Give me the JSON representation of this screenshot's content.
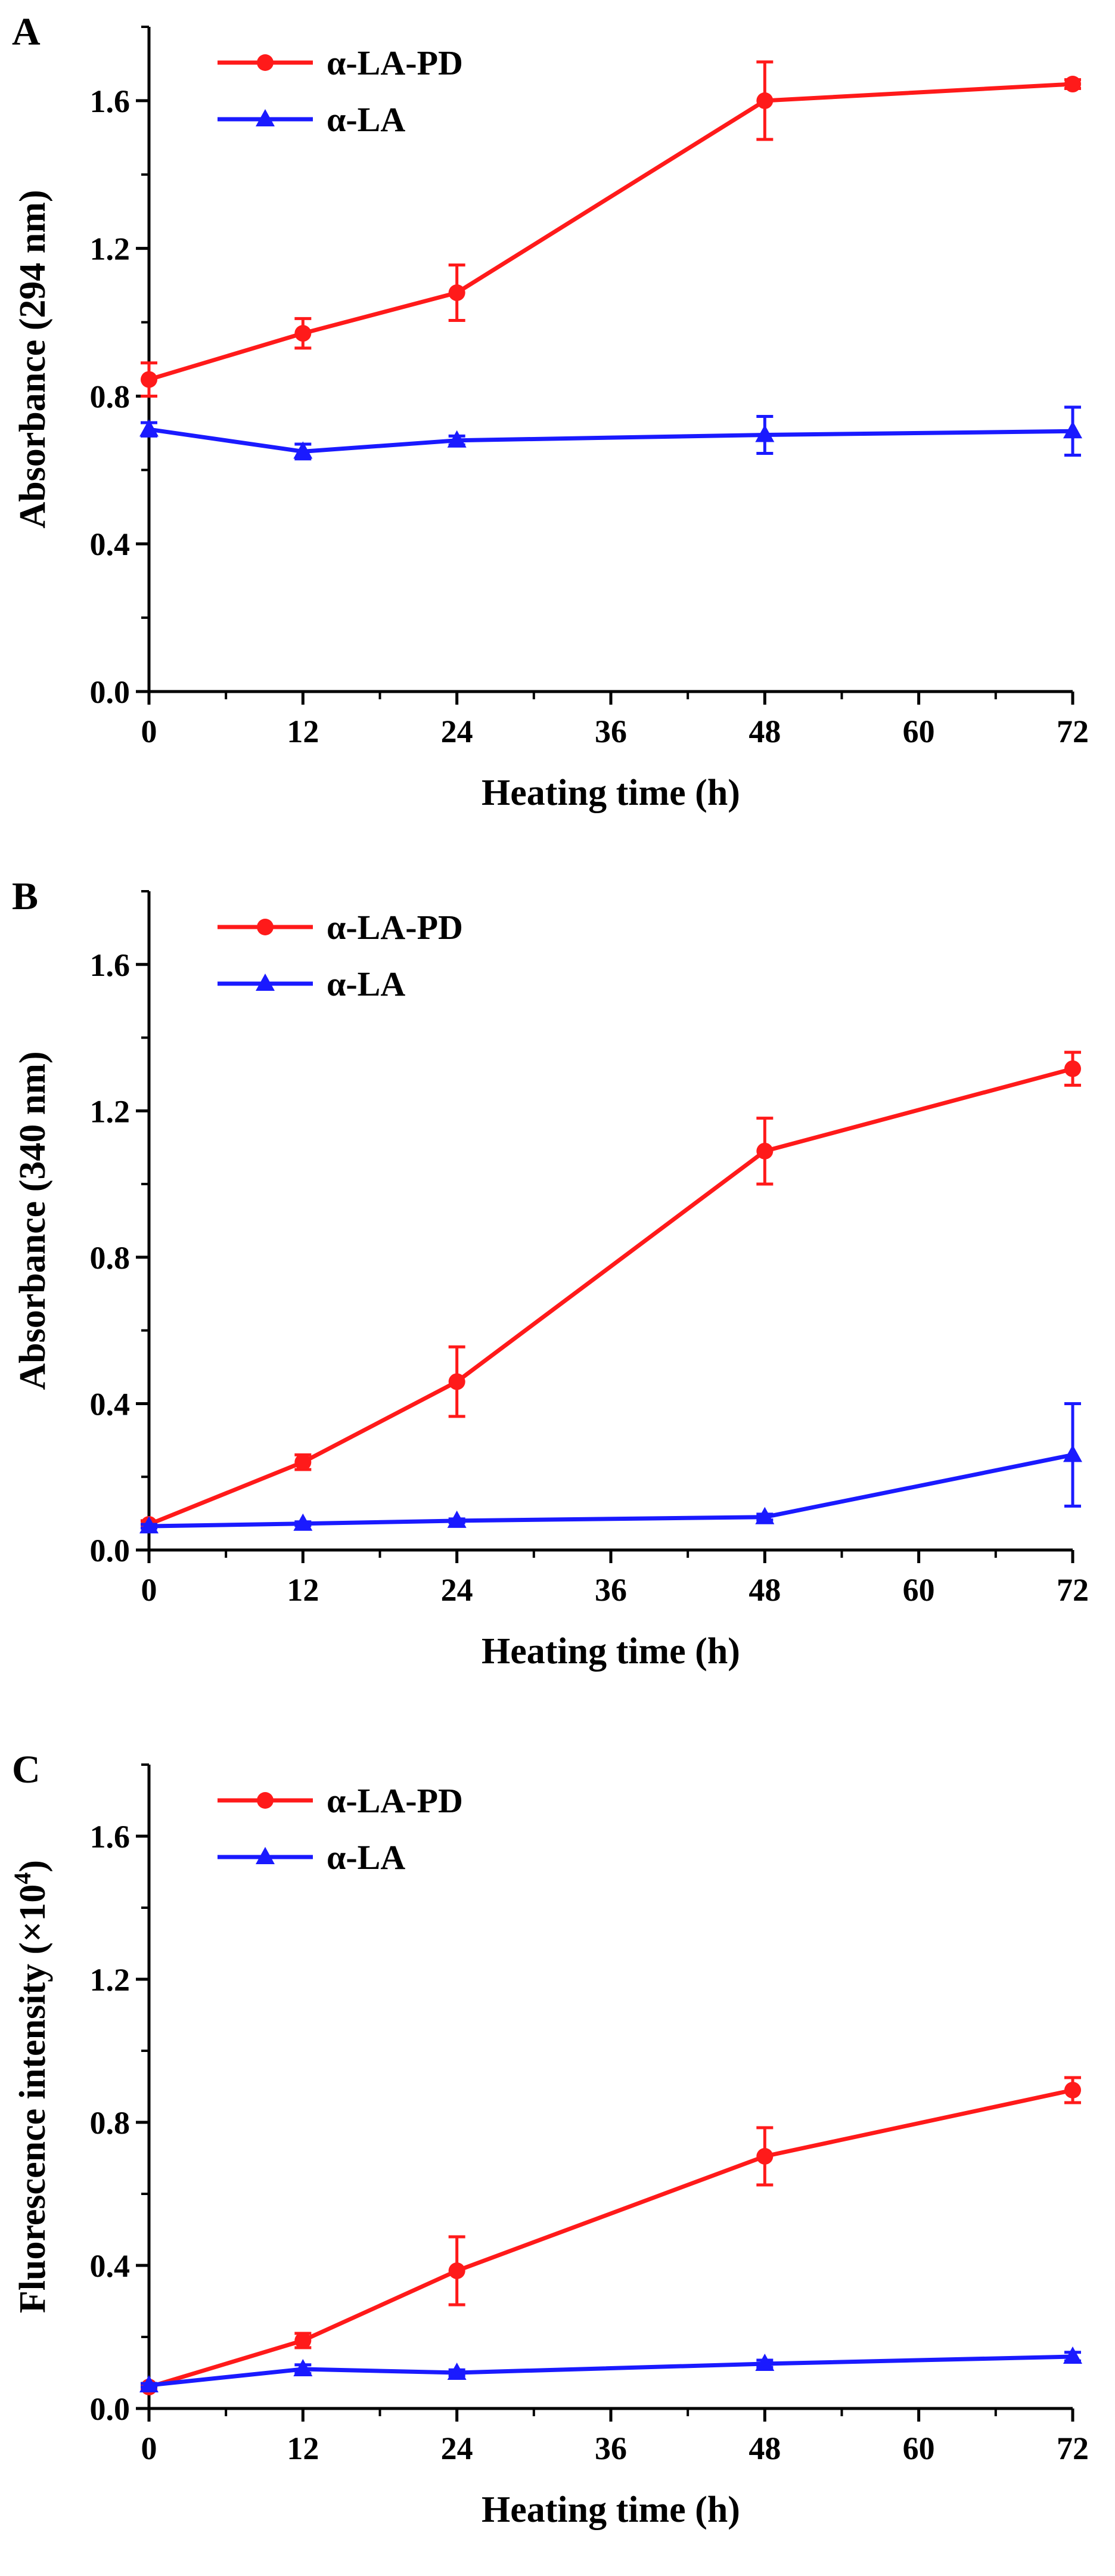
{
  "colors": {
    "series_a": "#ff1a1a",
    "series_b": "#1a1aff",
    "axis": "#000000"
  },
  "chart_data": [
    {
      "panel": "A",
      "type": "line",
      "xlabel": "Heating time (h)",
      "ylabel": "Absorbance (294 nm)",
      "ylabel_sup": "",
      "ylabel_tail": "",
      "x": [
        0,
        12,
        24,
        48,
        72
      ],
      "xticks": [
        "0",
        "12",
        "24",
        "36",
        "48",
        "60",
        "72"
      ],
      "xlim": [
        0,
        72
      ],
      "yticks": [
        "0.0",
        "0.4",
        "0.8",
        "1.2",
        "1.6"
      ],
      "ylim": [
        0,
        1.8
      ],
      "legend_position": "top-left",
      "series": [
        {
          "name": "α-LA-PD",
          "marker": "circle",
          "color": "#ff1a1a",
          "values": [
            0.845,
            0.97,
            1.08,
            1.6,
            1.645
          ],
          "errors": [
            0.045,
            0.04,
            0.075,
            0.105,
            0.012
          ]
        },
        {
          "name": "α-LA",
          "marker": "triangle",
          "color": "#1a1aff",
          "values": [
            0.71,
            0.65,
            0.68,
            0.695,
            0.705
          ],
          "errors": [
            0.018,
            0.02,
            0.012,
            0.05,
            0.065
          ]
        }
      ]
    },
    {
      "panel": "B",
      "type": "line",
      "xlabel": "Heating time (h)",
      "ylabel": "Absorbance (340 nm)",
      "ylabel_sup": "",
      "ylabel_tail": "",
      "x": [
        0,
        12,
        24,
        48,
        72
      ],
      "xticks": [
        "0",
        "12",
        "24",
        "36",
        "48",
        "60",
        "72"
      ],
      "xlim": [
        0,
        72
      ],
      "yticks": [
        "0.0",
        "0.4",
        "0.8",
        "1.2",
        "1.6"
      ],
      "ylim": [
        0,
        1.8
      ],
      "legend_position": "top-left",
      "series": [
        {
          "name": "α-LA-PD",
          "marker": "circle",
          "color": "#ff1a1a",
          "values": [
            0.07,
            0.24,
            0.46,
            1.09,
            1.315
          ],
          "errors": [
            0.01,
            0.02,
            0.095,
            0.09,
            0.045
          ]
        },
        {
          "name": "α-LA",
          "marker": "triangle",
          "color": "#1a1aff",
          "values": [
            0.065,
            0.072,
            0.08,
            0.09,
            0.26
          ],
          "errors": [
            0.005,
            0.005,
            0.005,
            0.008,
            0.14
          ]
        }
      ]
    },
    {
      "panel": "C",
      "type": "line",
      "xlabel": "Heating time (h)",
      "ylabel": "Fluorescence intensity (×10",
      "ylabel_sup": "4",
      "ylabel_tail": ")",
      "x": [
        0,
        12,
        24,
        48,
        72
      ],
      "xticks": [
        "0",
        "12",
        "24",
        "36",
        "48",
        "60",
        "72"
      ],
      "xlim": [
        0,
        72
      ],
      "yticks": [
        "0.0",
        "0.4",
        "0.8",
        "1.2",
        "1.6"
      ],
      "ylim": [
        0,
        1.8
      ],
      "legend_position": "top-left",
      "series": [
        {
          "name": "α-LA-PD",
          "marker": "circle",
          "color": "#ff1a1a",
          "values": [
            0.06,
            0.19,
            0.385,
            0.705,
            0.89
          ],
          "errors": [
            0.005,
            0.02,
            0.095,
            0.08,
            0.035
          ]
        },
        {
          "name": "α-LA",
          "marker": "triangle",
          "color": "#1a1aff",
          "values": [
            0.065,
            0.11,
            0.1,
            0.125,
            0.145
          ],
          "errors": [
            0.005,
            0.012,
            0.008,
            0.01,
            0.012
          ]
        }
      ]
    }
  ]
}
